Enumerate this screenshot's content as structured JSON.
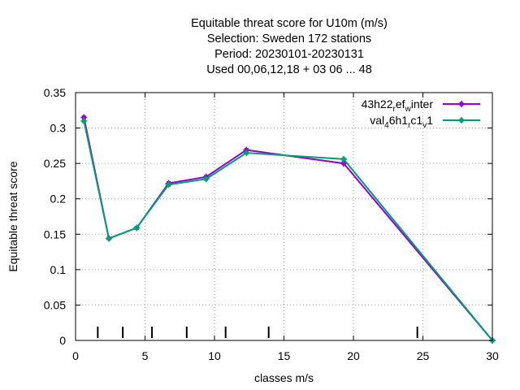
{
  "chart_data": {
    "type": "line",
    "title_lines": [
      "Equitable threat score  for U10m (m/s)",
      "Selection: Sweden    172 stations",
      "Period: 20230101-20230131",
      "Used  00,06,12,18  + 03 06 ... 48"
    ],
    "xlabel": "classes m/s",
    "ylabel": "Equitable threat score",
    "xlim": [
      0,
      30
    ],
    "ylim": [
      0,
      0.35
    ],
    "xticks": [
      0,
      5,
      10,
      15,
      20,
      25,
      30
    ],
    "yticks": [
      0,
      0.05,
      0.1,
      0.15,
      0.2,
      0.25,
      0.3,
      0.35
    ],
    "ytick_labels": [
      "0",
      "0.05",
      "0.1",
      "0.15",
      "0.2",
      "0.25",
      "0.3",
      "0.35"
    ],
    "grid": true,
    "legend_position": "top-right",
    "class_marks": [
      1.6,
      3.4,
      5.5,
      8.0,
      10.8,
      13.9,
      24.6
    ],
    "series": [
      {
        "name": "43h22_ref_winter",
        "color": "#9400d3",
        "x": [
          0.6,
          2.4,
          4.4,
          6.7,
          9.4,
          12.3,
          19.3,
          30
        ],
        "y": [
          0.315,
          0.144,
          0.159,
          0.222,
          0.231,
          0.269,
          0.25,
          0
        ]
      },
      {
        "name": "val_46h1_rc1_v1",
        "color": "#009e73",
        "x": [
          0.6,
          2.4,
          4.4,
          6.7,
          9.4,
          12.3,
          19.3,
          30
        ],
        "y": [
          0.31,
          0.144,
          0.159,
          0.22,
          0.228,
          0.265,
          0.256,
          0
        ]
      }
    ]
  }
}
